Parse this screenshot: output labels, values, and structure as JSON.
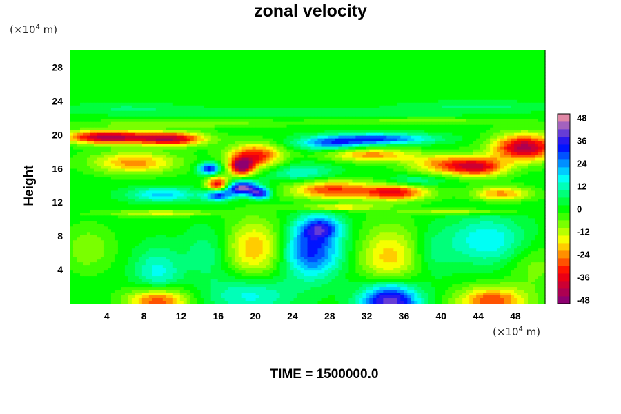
{
  "chart_data": {
    "type": "heatmap",
    "title": "zonal velocity",
    "xlabel": "",
    "ylabel": "Height",
    "x_unit_base": "(×10",
    "x_unit_exp": "4",
    "x_unit_end": " m)",
    "y_unit_base": "(×10",
    "y_unit_exp": "4",
    "y_unit_end": " m)",
    "footer": "TIME = 1500000.0",
    "xlim": [
      0,
      51.2
    ],
    "ylim": [
      0,
      30
    ],
    "x_ticks": [
      4,
      8,
      12,
      16,
      20,
      24,
      28,
      32,
      36,
      40,
      44,
      48
    ],
    "y_ticks": [
      4,
      8,
      12,
      16,
      20,
      24,
      28
    ],
    "colorbar": {
      "min": -50,
      "max": 50,
      "step": 4,
      "tick_values": [
        48,
        36,
        24,
        12,
        0,
        -12,
        -24,
        -36,
        -48
      ],
      "colors": [
        "#7f007f",
        "#ff0000",
        "#ffff00",
        "#00ff00",
        "#00ffff",
        "#0000ff",
        "#ff9999"
      ]
    },
    "background_value": 0,
    "features": [
      {
        "x": 34.5,
        "y": 0.3,
        "sx": 2.2,
        "sy": 1.6,
        "v": 44
      },
      {
        "x": 19.5,
        "y": 1.0,
        "sx": 3.2,
        "sy": 1.6,
        "v": 16
      },
      {
        "x": 9.5,
        "y": 0.3,
        "sx": 2.2,
        "sy": 1.2,
        "v": -34
      },
      {
        "x": 45.5,
        "y": 0.3,
        "sx": 2.6,
        "sy": 1.2,
        "v": -30
      },
      {
        "x": 26.0,
        "y": 6.2,
        "sx": 2.3,
        "sy": 2.2,
        "v": 32
      },
      {
        "x": 27.0,
        "y": 9.0,
        "sx": 1.6,
        "sy": 1.0,
        "v": 26
      },
      {
        "x": 20.0,
        "y": 6.5,
        "sx": 2.4,
        "sy": 2.4,
        "v": -22
      },
      {
        "x": 34.5,
        "y": 5.5,
        "sx": 2.4,
        "sy": 2.6,
        "v": -20
      },
      {
        "x": 45.0,
        "y": 7.5,
        "sx": 3.0,
        "sy": 2.0,
        "v": 18
      },
      {
        "x": 9.5,
        "y": 3.5,
        "sx": 1.8,
        "sy": 2.2,
        "v": 16
      },
      {
        "x": 2.0,
        "y": 6.5,
        "sx": 1.8,
        "sy": 1.8,
        "v": -10
      },
      {
        "x": 50.0,
        "y": 4.5,
        "sx": 2.0,
        "sy": 2.0,
        "v": -8
      },
      {
        "x": 15.0,
        "y": 6.0,
        "sx": 1.8,
        "sy": 2.2,
        "v": 10
      },
      {
        "x": 39.0,
        "y": 6.0,
        "sx": 1.6,
        "sy": 2.0,
        "v": 8
      },
      {
        "x": 4.0,
        "y": 19.7,
        "sx": 3.2,
        "sy": 0.55,
        "v": -44
      },
      {
        "x": 11.0,
        "y": 19.5,
        "sx": 2.6,
        "sy": 0.55,
        "v": -40
      },
      {
        "x": 7.0,
        "y": 16.7,
        "sx": 3.2,
        "sy": 0.9,
        "v": -24
      },
      {
        "x": 20.0,
        "y": 17.5,
        "sx": 2.0,
        "sy": 1.0,
        "v": -34
      },
      {
        "x": 16.0,
        "y": 14.0,
        "sx": 0.9,
        "sy": 0.7,
        "v": -42
      },
      {
        "x": 18.5,
        "y": 16.2,
        "sx": 0.9,
        "sy": 0.7,
        "v": -44
      },
      {
        "x": 18.5,
        "y": 13.7,
        "sx": 1.3,
        "sy": 0.55,
        "v": 46
      },
      {
        "x": 15.0,
        "y": 16.0,
        "sx": 0.8,
        "sy": 0.5,
        "v": 36
      },
      {
        "x": 16.0,
        "y": 12.9,
        "sx": 1.0,
        "sy": 0.5,
        "v": 38
      },
      {
        "x": 20.5,
        "y": 13.0,
        "sx": 0.8,
        "sy": 0.45,
        "v": 34
      },
      {
        "x": 10.0,
        "y": 12.9,
        "sx": 2.6,
        "sy": 0.6,
        "v": 20
      },
      {
        "x": 33.0,
        "y": 19.5,
        "sx": 4.2,
        "sy": 0.45,
        "v": 30
      },
      {
        "x": 28.0,
        "y": 18.9,
        "sx": 2.6,
        "sy": 0.5,
        "v": 22
      },
      {
        "x": 32.5,
        "y": 17.6,
        "sx": 3.2,
        "sy": 0.55,
        "v": -24
      },
      {
        "x": 25.0,
        "y": 15.5,
        "sx": 2.6,
        "sy": 0.8,
        "v": 14
      },
      {
        "x": 28.0,
        "y": 13.5,
        "sx": 3.0,
        "sy": 0.8,
        "v": -30
      },
      {
        "x": 35.0,
        "y": 13.2,
        "sx": 2.6,
        "sy": 0.7,
        "v": -34
      },
      {
        "x": 40.0,
        "y": 16.5,
        "sx": 2.6,
        "sy": 0.8,
        "v": -22
      },
      {
        "x": 44.0,
        "y": 16.2,
        "sx": 2.2,
        "sy": 0.8,
        "v": -34
      },
      {
        "x": 49.0,
        "y": 18.5,
        "sx": 2.4,
        "sy": 1.1,
        "v": -44
      },
      {
        "x": 46.5,
        "y": 13.0,
        "sx": 2.2,
        "sy": 0.6,
        "v": -24
      },
      {
        "x": 37.0,
        "y": 14.5,
        "sx": 2.4,
        "sy": 0.5,
        "v": 12
      },
      {
        "x": 29.0,
        "y": 11.4,
        "sx": 3.0,
        "sy": 0.25,
        "v": -18
      },
      {
        "x": 10.0,
        "y": 10.7,
        "sx": 4.0,
        "sy": 0.25,
        "v": -16
      },
      {
        "x": 42.0,
        "y": 10.9,
        "sx": 4.0,
        "sy": 0.25,
        "v": -14
      },
      {
        "x": 12.0,
        "y": 21.3,
        "sx": 7.0,
        "sy": 0.3,
        "v": -10
      },
      {
        "x": 38.0,
        "y": 21.6,
        "sx": 7.0,
        "sy": 0.3,
        "v": -8
      },
      {
        "x": 25.0,
        "y": 22.6,
        "sx": 14.0,
        "sy": 0.35,
        "v": 6
      },
      {
        "x": 44.0,
        "y": 23.4,
        "sx": 6.0,
        "sy": 0.4,
        "v": 7
      },
      {
        "x": 6.0,
        "y": 23.2,
        "sx": 5.0,
        "sy": 0.4,
        "v": 6
      }
    ]
  }
}
